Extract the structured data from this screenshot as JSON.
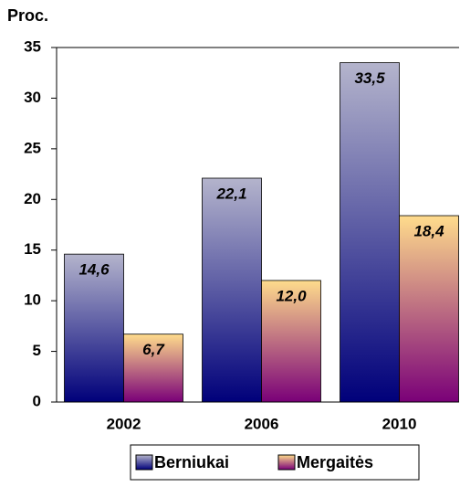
{
  "chart_data": {
    "type": "bar",
    "y_label": "Proc.",
    "categories": [
      "2002",
      "2006",
      "2010"
    ],
    "series": [
      {
        "name": "Berniukai",
        "color": [
          "#b4b4cc",
          "#00007a"
        ],
        "values": [
          14.6,
          22.1,
          33.5
        ],
        "value_labels": [
          "14,6",
          "22,1",
          "33,5"
        ]
      },
      {
        "name": "Mergaitės",
        "color": [
          "#ffdc8c",
          "#7a0078"
        ],
        "values": [
          6.7,
          12.0,
          18.4
        ],
        "value_labels": [
          "6,7",
          "12,0",
          "18,4"
        ]
      }
    ],
    "ylim": [
      0,
      35
    ],
    "yticks": [
      0,
      5,
      10,
      15,
      20,
      25,
      30,
      35
    ],
    "legend": "bottom"
  }
}
